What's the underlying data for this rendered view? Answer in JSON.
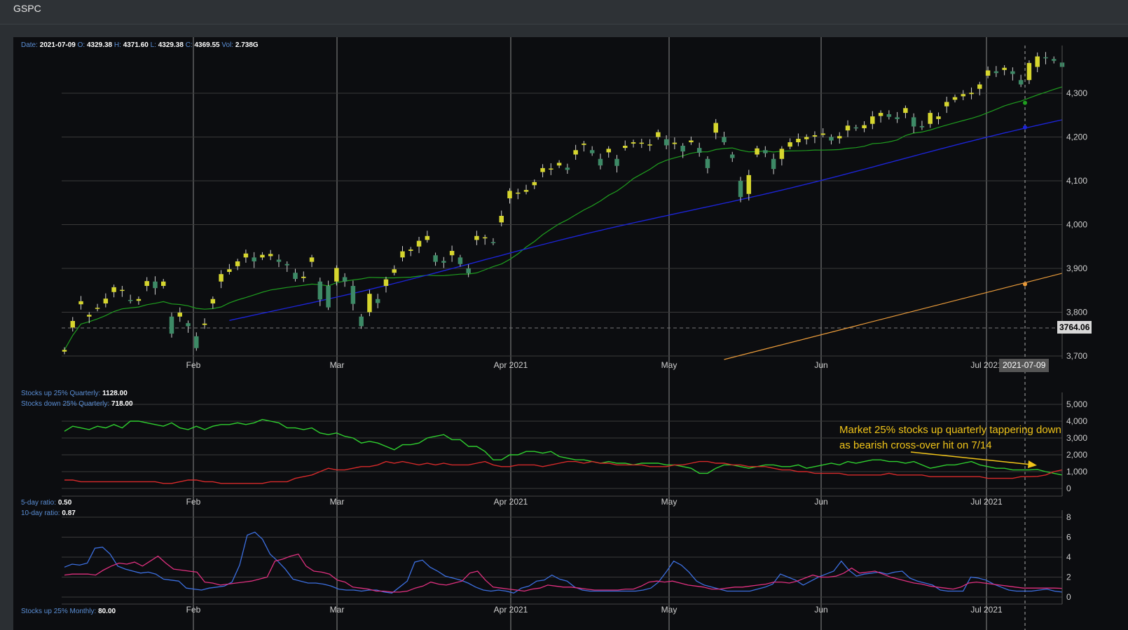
{
  "window": {
    "title": "GSPC"
  },
  "ohlc_legend": {
    "date_label": "Date:",
    "date": "2021-07-09",
    "open_label": "O:",
    "open": "4329.38",
    "high_label": "H:",
    "high": "4371.60",
    "low_label": "L:",
    "low": "4329.38",
    "close_label": "C:",
    "close": "4369.55",
    "vol_label": "Vol:",
    "vol": "2.738G"
  },
  "price_marker": "3764.06",
  "crosshair_date": "2021-07-09",
  "annotation": "Market 25% stocks up quarterly tappering down as bearish cross-over hit on 7/14",
  "panel2_legend": {
    "up_label": "Stocks up 25% Quarterly:",
    "up_value": "1128.00",
    "down_label": "Stocks down 25% Quarterly:",
    "down_value": "718.00"
  },
  "panel3_legend": {
    "r5_label": "5-day ratio:",
    "r5_value": "0.50",
    "r10_label": "10-day ratio:",
    "r10_value": "0.87"
  },
  "panel4_legend": {
    "label": "Stocks up 25% Monthly:",
    "value": "80.00"
  },
  "colors": {
    "up_candle": "#d6d62e",
    "down_candle": "#3d8a66",
    "sma_fast": "#1f9e1f",
    "sma_mid": "#1c24d6",
    "sma_slow": "#e89a3a",
    "stocks_up": "#2fcf2f",
    "stocks_down": "#d62a2a",
    "ratio5": "#3c6fe0",
    "ratio10": "#e0307f",
    "annotation": "#f0c419"
  },
  "chart_data": [
    {
      "type": "candlestick",
      "title": "GSPC",
      "x_ticks": [
        "Feb",
        "Mar",
        "Apr 2021",
        "May",
        "Jun",
        "Jul 2021"
      ],
      "y_ticks": [
        "3,700",
        "3,800",
        "3,900",
        "4,000",
        "4,100",
        "4,200",
        "4,300"
      ],
      "ylim": [
        3700,
        4390
      ],
      "closes": [
        3714,
        3780,
        3825,
        3794,
        3810,
        3831,
        3857,
        3851,
        3826,
        3830,
        3871,
        3855,
        3870,
        3751,
        3799,
        3768,
        3718,
        3774,
        3830,
        3887,
        3898,
        3916,
        3934,
        3916,
        3931,
        3933,
        3915,
        3907,
        3876,
        3881,
        3925,
        3829,
        3811,
        3901,
        3870,
        3819,
        3768,
        3842,
        3821,
        3875,
        3898,
        3939,
        3943,
        3963,
        3974,
        3915,
        3913,
        3940,
        3910,
        3889,
        3974,
        3971,
        3959,
        4020,
        4077,
        4073,
        4079,
        4097,
        4129,
        4128,
        4141,
        4125,
        4170,
        4185,
        4163,
        4135,
        4173,
        4134,
        4180,
        4188,
        4187,
        4183,
        4211,
        4181,
        4187,
        4167,
        4192,
        4164,
        4129,
        4232,
        4188,
        4152,
        4063,
        4113,
        4174,
        4163,
        4127,
        4173,
        4188,
        4196,
        4200,
        4204,
        4208,
        4192,
        4202,
        4226,
        4220,
        4227,
        4247,
        4255,
        4246,
        4241,
        4266,
        4224,
        4222,
        4255,
        4247,
        4280,
        4291,
        4298,
        4301,
        4320,
        4352,
        4346,
        4358,
        4344,
        4320,
        4369,
        4384,
        4381,
        4374,
        4360
      ],
      "opens": [
        3710,
        3765,
        3818,
        3790,
        3808,
        3820,
        3846,
        3850,
        3828,
        3826,
        3860,
        3870,
        3860,
        3790,
        3790,
        3775,
        3745,
        3771,
        3820,
        3870,
        3892,
        3905,
        3925,
        3925,
        3925,
        3928,
        3920,
        3910,
        3890,
        3878,
        3915,
        3870,
        3860,
        3870,
        3880,
        3860,
        3790,
        3800,
        3830,
        3860,
        3890,
        3925,
        3940,
        3950,
        3965,
        3930,
        3917,
        3930,
        3925,
        3900,
        3965,
        3969,
        3960,
        4005,
        4060,
        4073,
        4075,
        4090,
        4120,
        4128,
        4135,
        4130,
        4160,
        4182,
        4170,
        4150,
        4165,
        4150,
        4175,
        4185,
        4187,
        4183,
        4200,
        4195,
        4184,
        4180,
        4188,
        4175,
        4150,
        4210,
        4200,
        4160,
        4100,
        4070,
        4160,
        4170,
        4150,
        4150,
        4178,
        4188,
        4195,
        4201,
        4205,
        4200,
        4197,
        4215,
        4222,
        4220,
        4230,
        4248,
        4252,
        4245,
        4255,
        4245,
        4225,
        4230,
        4241,
        4270,
        4285,
        4293,
        4298,
        4310,
        4340,
        4350,
        4353,
        4350,
        4330,
        4330,
        4360,
        4382,
        4378,
        4370
      ]
    },
    {
      "type": "line",
      "x_ticks": [
        "Feb",
        "Mar",
        "Apr 2021",
        "May",
        "Jun",
        "Jul 2021"
      ],
      "y_ticks": [
        "0",
        "1,000",
        "2,000",
        "3,000",
        "4,000",
        "5,000"
      ],
      "ylim": [
        0,
        5200
      ],
      "series": [
        {
          "name": "Stocks up 25% Quarterly",
          "values": [
            3400,
            3700,
            3600,
            3500,
            3700,
            3600,
            3800,
            3600,
            4000,
            4000,
            3900,
            3800,
            3700,
            3900,
            3600,
            3500,
            3700,
            3500,
            3700,
            3800,
            3800,
            3900,
            3800,
            3900,
            4100,
            4000,
            3900,
            3600,
            3600,
            3500,
            3600,
            3300,
            3200,
            3300,
            3100,
            3000,
            2700,
            2800,
            2700,
            2500,
            2300,
            2600,
            2600,
            2700,
            3000,
            3100,
            3200,
            2900,
            2900,
            2500,
            2500,
            2200,
            1700,
            1700,
            2000,
            2000,
            2200,
            2200,
            2100,
            2200,
            1900,
            1800,
            1700,
            1700,
            1600,
            1500,
            1600,
            1500,
            1500,
            1400,
            1500,
            1500,
            1500,
            1400,
            1400,
            1300,
            1200,
            900,
            900,
            1200,
            1400,
            1400,
            1300,
            1200,
            1300,
            1400,
            1400,
            1300,
            1300,
            1400,
            1200,
            1300,
            1400,
            1500,
            1400,
            1600,
            1500,
            1600,
            1700,
            1700,
            1600,
            1600,
            1500,
            1600,
            1400,
            1200,
            1300,
            1400,
            1400,
            1500,
            1600,
            1400,
            1300,
            1200,
            1200,
            1100,
            1100,
            1100,
            1128,
            1000,
            900,
            800
          ]
        },
        {
          "name": "Stocks down 25% Quarterly",
          "values": [
            500,
            500,
            400,
            400,
            400,
            400,
            400,
            400,
            400,
            400,
            400,
            400,
            300,
            300,
            400,
            500,
            500,
            400,
            400,
            300,
            300,
            300,
            300,
            300,
            300,
            400,
            400,
            400,
            600,
            700,
            800,
            1000,
            1200,
            1100,
            1100,
            1200,
            1300,
            1300,
            1400,
            1600,
            1500,
            1600,
            1500,
            1400,
            1500,
            1400,
            1500,
            1400,
            1400,
            1400,
            1500,
            1600,
            1400,
            1300,
            1300,
            1400,
            1400,
            1400,
            1300,
            1400,
            1500,
            1600,
            1600,
            1500,
            1600,
            1500,
            1500,
            1400,
            1400,
            1400,
            1400,
            1300,
            1300,
            1300,
            1400,
            1400,
            1500,
            1600,
            1600,
            1500,
            1500,
            1400,
            1400,
            1300,
            1300,
            1300,
            1200,
            1100,
            1100,
            1000,
            1000,
            900,
            900,
            900,
            900,
            800,
            800,
            800,
            800,
            800,
            900,
            800,
            800,
            800,
            800,
            700,
            700,
            700,
            700,
            700,
            700,
            700,
            600,
            600,
            600,
            600,
            700,
            700,
            718,
            800,
            1000,
            1100
          ]
        }
      ]
    },
    {
      "type": "line",
      "x_ticks": [
        "Feb",
        "Mar",
        "Apr 2021",
        "May",
        "Jun",
        "Jul 2021"
      ],
      "y_ticks": [
        "0",
        "2",
        "4",
        "6",
        "8"
      ],
      "ylim": [
        -0.3,
        8.5
      ],
      "series": [
        {
          "name": "5-day ratio",
          "values": [
            3.0,
            3.3,
            3.2,
            3.4,
            4.9,
            5.0,
            4.3,
            3.1,
            2.8,
            2.6,
            2.4,
            2.5,
            2.3,
            1.8,
            1.7,
            1.6,
            0.9,
            0.8,
            0.7,
            0.9,
            1.0,
            1.1,
            1.5,
            3.2,
            6.2,
            6.5,
            5.8,
            4.3,
            3.6,
            2.8,
            1.8,
            1.6,
            1.4,
            1.4,
            1.3,
            1.1,
            0.8,
            0.7,
            0.7,
            0.6,
            0.7,
            0.7,
            0.5,
            0.4,
            1.0,
            1.6,
            3.5,
            3.7,
            3.0,
            2.6,
            2.1,
            1.9,
            1.7,
            1.4,
            1.0,
            0.7,
            0.6,
            0.7,
            0.6,
            0.4,
            0.9,
            1.1,
            1.6,
            1.7,
            2.2,
            1.8,
            1.6,
            1.0,
            0.7,
            0.6,
            0.6,
            0.6,
            0.6,
            0.6,
            0.6,
            0.6,
            0.7,
            0.9,
            1.5,
            2.5,
            3.6,
            3.2,
            2.5,
            1.6,
            1.2,
            1.0,
            0.8,
            0.6,
            0.6,
            0.6,
            0.6,
            0.8,
            1.0,
            1.3,
            2.3,
            2.0,
            1.7,
            1.2,
            1.6,
            2.0,
            2.3,
            2.6,
            3.6,
            2.7,
            2.1,
            2.3,
            2.4,
            2.5,
            2.3,
            2.5,
            2.6,
            1.9,
            1.6,
            1.4,
            1.2,
            0.7,
            0.6,
            0.6,
            0.6,
            2.0,
            1.9,
            1.7,
            1.3,
            1.0,
            0.7,
            0.6,
            0.6,
            0.6,
            0.7,
            0.8,
            0.6,
            0.5
          ]
        },
        {
          "name": "10-day ratio",
          "values": [
            2.2,
            2.3,
            2.3,
            2.3,
            2.2,
            2.7,
            3.1,
            3.4,
            3.3,
            3.5,
            3.1,
            3.6,
            4.1,
            3.4,
            2.8,
            2.7,
            2.6,
            2.5,
            1.5,
            1.4,
            1.2,
            1.3,
            1.4,
            1.5,
            1.6,
            1.8,
            2.0,
            3.6,
            3.8,
            4.1,
            4.3,
            3.1,
            2.6,
            2.5,
            2.3,
            1.7,
            1.5,
            1.0,
            0.9,
            0.8,
            0.6,
            0.6,
            0.5,
            0.5,
            0.6,
            0.9,
            1.1,
            1.5,
            1.3,
            1.2,
            1.4,
            1.6,
            2.4,
            2.6,
            1.7,
            1.0,
            0.9,
            0.8,
            0.7,
            0.6,
            0.8,
            0.9,
            1.2,
            1.1,
            1.0,
            1.0,
            0.9,
            0.8,
            0.7,
            0.7,
            0.7,
            0.7,
            0.8,
            0.8,
            1.1,
            1.5,
            1.6,
            1.5,
            1.6,
            1.4,
            1.2,
            1.1,
            1.0,
            0.8,
            0.8,
            0.9,
            1.0,
            1.0,
            1.1,
            1.2,
            1.3,
            1.5,
            1.5,
            1.4,
            1.6,
            1.9,
            2.2,
            2.0,
            2.0,
            2.1,
            2.4,
            2.9,
            2.4,
            2.5,
            2.6,
            2.3,
            2.0,
            1.8,
            1.6,
            1.4,
            1.3,
            1.1,
            1.0,
            0.9,
            0.8,
            1.0,
            1.4,
            1.5,
            1.4,
            1.3,
            1.2,
            1.1,
            1.0,
            0.9,
            0.9,
            0.9,
            0.9,
            0.9,
            0.87
          ]
        }
      ]
    }
  ]
}
